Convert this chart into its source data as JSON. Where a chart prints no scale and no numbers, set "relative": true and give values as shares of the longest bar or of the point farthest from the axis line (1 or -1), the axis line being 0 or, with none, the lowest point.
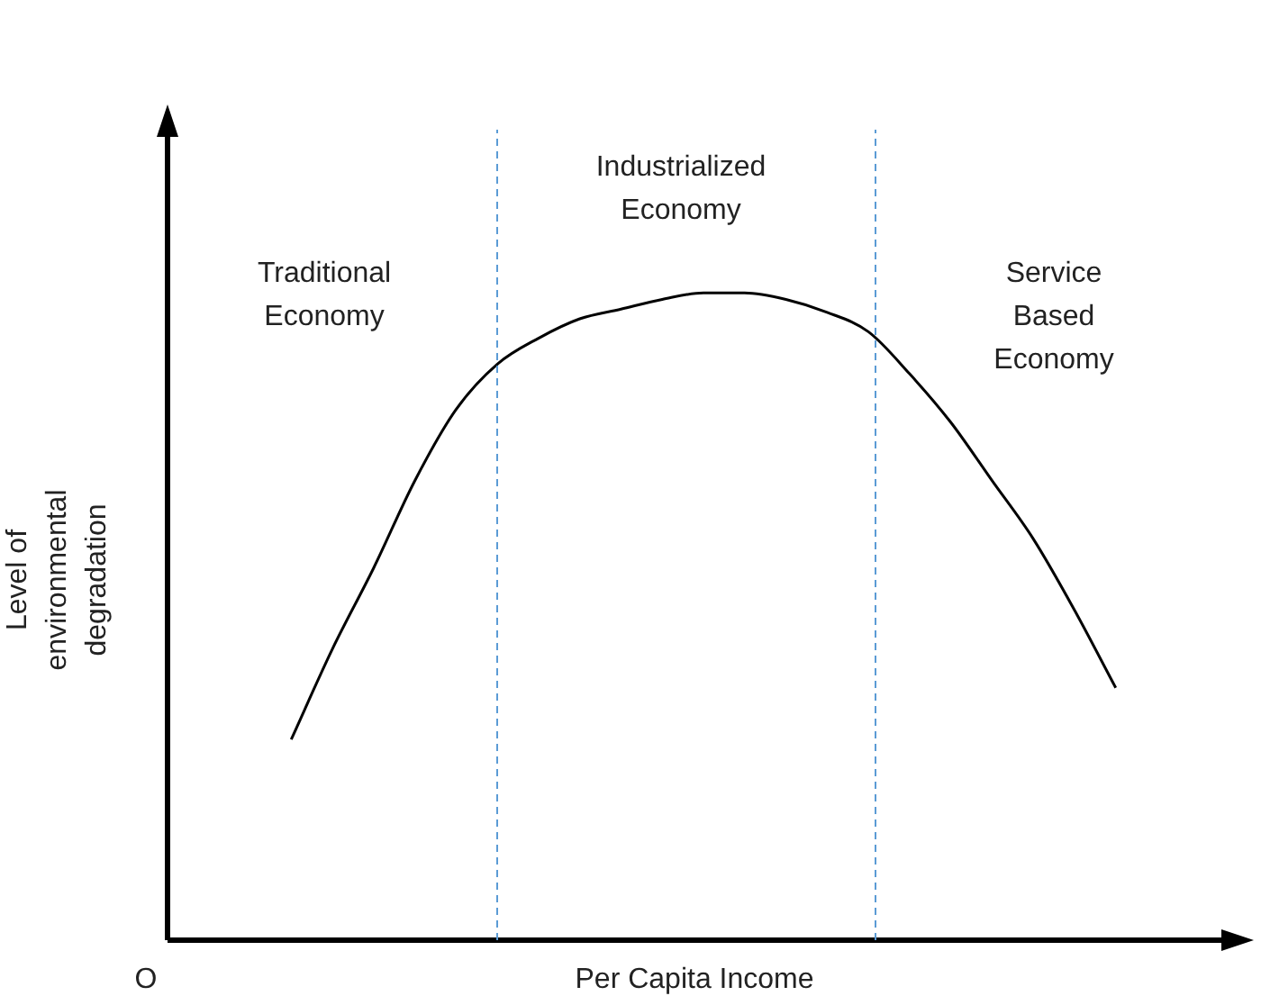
{
  "chart_data": {
    "type": "line",
    "relative": true,
    "xlabel": "Per Capita Income",
    "ylabel": "Level of environmental degradation",
    "categories": [
      null,
      null,
      null,
      null,
      null,
      null,
      null,
      null,
      null,
      null,
      null,
      null,
      null,
      null,
      null,
      null,
      null,
      null,
      null,
      null,
      null,
      null,
      null,
      null,
      null,
      null,
      null
    ],
    "series": [
      {
        "color": "#000000",
        "values": [
          null,
          null,
          null,
          0.31,
          0.45,
          0.575,
          0.71,
          0.82,
          0.89,
          0.93,
          0.96,
          0.975,
          0.99,
          1,
          1,
          0.99,
          0.97,
          0.94,
          0.875,
          0.8,
          0.71,
          0.62,
          0.51,
          0.39,
          null,
          null,
          null
        ]
      }
    ],
    "annotations": [
      "Traditional Economy",
      "Industrialized Economy",
      "Service Based Economy",
      "O"
    ],
    "legend": false,
    "marker": "none",
    "line_style": "solid"
  }
}
